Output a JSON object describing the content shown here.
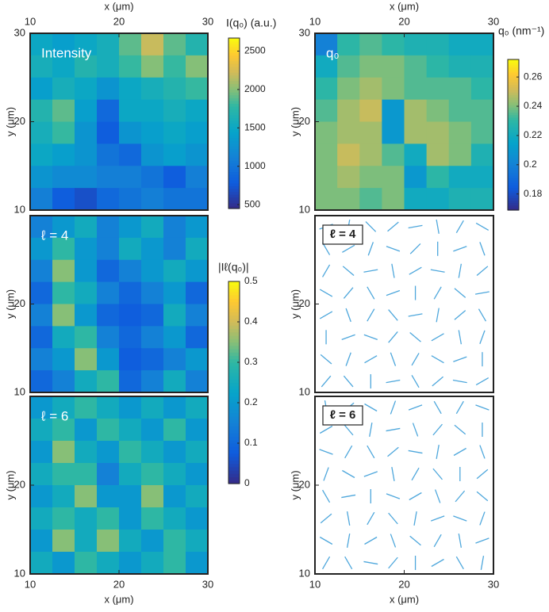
{
  "chart_data": [
    {
      "type": "heatmap",
      "title": "Intensity",
      "xlabel": "x (μm)",
      "ylabel": "y (μm)",
      "xlim": [
        10,
        30
      ],
      "ylim": [
        10,
        30
      ],
      "xticks": [
        10,
        20,
        30
      ],
      "yticks": [
        10,
        20,
        30
      ],
      "colormap": "parula",
      "colorbar": {
        "label": "I(q₀) (a.u.)",
        "clim": [
          450,
          2670
        ],
        "ticks": [
          500,
          1000,
          1500,
          2000,
          2500
        ]
      },
      "z": [
        [
          1500,
          1400,
          1500,
          1600,
          1900,
          2200,
          1900,
          1700
        ],
        [
          1600,
          1500,
          1700,
          1600,
          1800,
          2000,
          1800,
          2000
        ],
        [
          1400,
          1600,
          1500,
          1300,
          1500,
          1600,
          1700,
          1800
        ],
        [
          1700,
          1900,
          1400,
          900,
          1500,
          1500,
          1600,
          1500
        ],
        [
          1600,
          1800,
          1300,
          800,
          1300,
          1400,
          1500,
          1400
        ],
        [
          1500,
          1400,
          1300,
          1000,
          900,
          1300,
          1400,
          1300
        ],
        [
          1300,
          1200,
          1200,
          1100,
          1100,
          1000,
          800,
          1100
        ],
        [
          1100,
          800,
          700,
          900,
          1000,
          1100,
          1000,
          1000
        ]
      ]
    },
    {
      "type": "heatmap",
      "title": "q₀",
      "xlabel": "x (μm)",
      "ylabel": "y (μm)",
      "xlim": [
        10,
        30
      ],
      "ylim": [
        10,
        30
      ],
      "xticks": [
        10,
        20,
        30
      ],
      "yticks": [
        10,
        20,
        30
      ],
      "colormap": "parula",
      "colorbar": {
        "label": "q₀ (nm⁻¹)",
        "clim": [
          0.169,
          0.272
        ],
        "ticks": [
          0.18,
          0.2,
          0.22,
          0.24,
          0.26
        ]
      },
      "z": [
        [
          0.2,
          0.23,
          0.235,
          0.23,
          0.225,
          0.225,
          0.22,
          0.22
        ],
        [
          0.22,
          0.235,
          0.24,
          0.24,
          0.235,
          0.23,
          0.225,
          0.225
        ],
        [
          0.23,
          0.24,
          0.245,
          0.24,
          0.235,
          0.235,
          0.235,
          0.23
        ],
        [
          0.235,
          0.245,
          0.25,
          0.21,
          0.245,
          0.24,
          0.235,
          0.235
        ],
        [
          0.24,
          0.245,
          0.245,
          0.21,
          0.245,
          0.245,
          0.24,
          0.235
        ],
        [
          0.24,
          0.25,
          0.245,
          0.235,
          0.22,
          0.245,
          0.24,
          0.225
        ],
        [
          0.24,
          0.245,
          0.24,
          0.24,
          0.21,
          0.23,
          0.22,
          0.22
        ],
        [
          0.24,
          0.24,
          0.235,
          0.24,
          0.22,
          0.22,
          0.225,
          0.225
        ]
      ]
    },
    {
      "type": "heatmap",
      "title": "ℓ = 4",
      "ylabel": "y (μm)",
      "xlim": [
        10,
        30
      ],
      "ylim": [
        10,
        30
      ],
      "yticks": [
        10,
        20
      ],
      "colormap": "parula",
      "colorbar": {
        "label": "|Iℓ(q₀)|",
        "clim": [
          0,
          0.5
        ],
        "ticks": [
          0,
          0.1,
          0.2,
          0.3,
          0.4,
          0.5
        ]
      },
      "z": [
        [
          0.15,
          0.2,
          0.25,
          0.15,
          0.2,
          0.25,
          0.15,
          0.2
        ],
        [
          0.2,
          0.3,
          0.2,
          0.15,
          0.25,
          0.2,
          0.15,
          0.25
        ],
        [
          0.15,
          0.35,
          0.2,
          0.1,
          0.15,
          0.2,
          0.25,
          0.2
        ],
        [
          0.1,
          0.3,
          0.25,
          0.15,
          0.1,
          0.15,
          0.2,
          0.1
        ],
        [
          0.15,
          0.35,
          0.2,
          0.1,
          0.08,
          0.1,
          0.25,
          0.15
        ],
        [
          0.1,
          0.25,
          0.3,
          0.15,
          0.1,
          0.15,
          0.2,
          0.1
        ],
        [
          0.15,
          0.2,
          0.35,
          0.2,
          0.08,
          0.1,
          0.15,
          0.2
        ],
        [
          0.1,
          0.15,
          0.25,
          0.3,
          0.1,
          0.15,
          0.25,
          0.15
        ]
      ]
    },
    {
      "type": "quiver",
      "title": "ℓ = 4",
      "ylabel": "y (μm)",
      "xlim": [
        10,
        30
      ],
      "ylim": [
        10,
        30
      ],
      "yticks": [
        10,
        20
      ],
      "color": "#4ea7dc",
      "angles": [
        [
          20,
          80,
          135,
          40,
          10,
          100,
          60,
          150
        ],
        [
          120,
          30,
          70,
          160,
          45,
          90,
          20,
          110
        ],
        [
          60,
          140,
          10,
          100,
          30,
          170,
          80,
          40
        ],
        [
          150,
          50,
          120,
          20,
          90,
          60,
          140,
          10
        ],
        [
          30,
          110,
          60,
          130,
          10,
          80,
          40,
          120
        ],
        [
          90,
          20,
          160,
          50,
          140,
          30,
          100,
          70
        ],
        [
          140,
          70,
          30,
          110,
          60,
          150,
          20,
          90
        ],
        [
          50,
          130,
          90,
          10,
          120,
          40,
          170,
          30
        ]
      ]
    },
    {
      "type": "heatmap",
      "title": "ℓ = 6",
      "xlabel": "x (μm)",
      "ylabel": "y (μm)",
      "xlim": [
        10,
        30
      ],
      "ylim": [
        10,
        30
      ],
      "xticks": [
        10,
        20,
        30
      ],
      "yticks": [
        10,
        20
      ],
      "colormap": "parula",
      "z": [
        [
          0.2,
          0.25,
          0.3,
          0.25,
          0.2,
          0.25,
          0.2,
          0.25
        ],
        [
          0.25,
          0.3,
          0.2,
          0.3,
          0.25,
          0.2,
          0.3,
          0.2
        ],
        [
          0.2,
          0.35,
          0.25,
          0.2,
          0.3,
          0.25,
          0.2,
          0.25
        ],
        [
          0.25,
          0.3,
          0.3,
          0.15,
          0.25,
          0.3,
          0.25,
          0.2
        ],
        [
          0.2,
          0.25,
          0.35,
          0.2,
          0.2,
          0.35,
          0.2,
          0.25
        ],
        [
          0.25,
          0.3,
          0.25,
          0.3,
          0.2,
          0.3,
          0.25,
          0.2
        ],
        [
          0.2,
          0.35,
          0.25,
          0.35,
          0.25,
          0.2,
          0.3,
          0.25
        ],
        [
          0.25,
          0.2,
          0.3,
          0.25,
          0.2,
          0.25,
          0.3,
          0.2
        ]
      ]
    },
    {
      "type": "quiver",
      "title": "ℓ = 6",
      "xlabel": "x (μm)",
      "ylabel": "y (μm)",
      "xlim": [
        10,
        30
      ],
      "ylim": [
        10,
        30
      ],
      "xticks": [
        10,
        20,
        30
      ],
      "yticks": [
        10,
        20
      ],
      "color": "#4ea7dc",
      "angles": [
        [
          100,
          40,
          150,
          70,
          20,
          120,
          60,
          160
        ],
        [
          30,
          130,
          80,
          10,
          110,
          50,
          140,
          90
        ],
        [
          160,
          60,
          120,
          40,
          170,
          80,
          30,
          110
        ],
        [
          70,
          150,
          20,
          100,
          60,
          130,
          90,
          40
        ],
        [
          120,
          10,
          90,
          160,
          30,
          110,
          50,
          140
        ],
        [
          40,
          100,
          60,
          130,
          80,
          20,
          160,
          70
        ],
        [
          150,
          80,
          30,
          110,
          140,
          60,
          100,
          20
        ],
        [
          60,
          120,
          170,
          50,
          90,
          30,
          120,
          80
        ]
      ]
    }
  ]
}
